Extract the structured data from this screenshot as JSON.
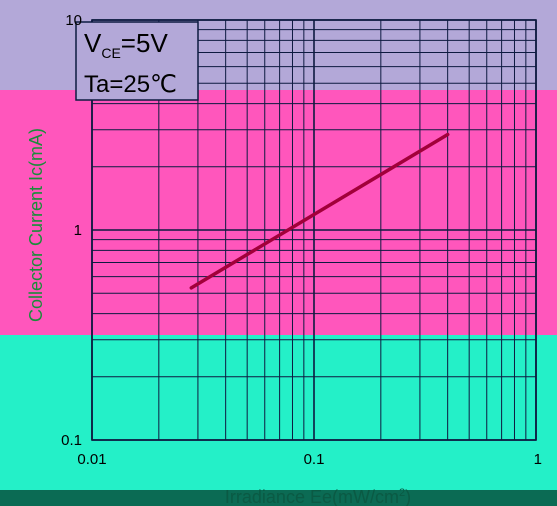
{
  "chart_data": {
    "type": "line",
    "xscale": "log",
    "yscale": "log",
    "xlabel": "Irradiance Ee(mW/cm",
    "xlabel_sup": "2",
    "xlabel_end": ")",
    "ylabel": "Collector Current Ic(mA)",
    "xlim": [
      0.01,
      1
    ],
    "ylim": [
      0.1,
      10
    ],
    "x_ticks": [
      "0.01",
      "0.1",
      "1"
    ],
    "y_ticks": [
      "0.1",
      "1",
      "10"
    ],
    "grid": true,
    "conditions": {
      "v_prefix": "V",
      "v_sub": "CE",
      "v_value": "=5V",
      "ta": "Ta=25℃"
    },
    "series": [
      {
        "x": [
          0.028,
          0.4
        ],
        "y": [
          0.53,
          2.85
        ]
      }
    ],
    "colors": {
      "band_top": "#b3a8d8",
      "band_mid": "#ff56bc",
      "band_low": "#24f0c8",
      "band_bottom": "#0b6b54",
      "grid": "#0d1a40",
      "line": "#a2003a",
      "axis_text": "#000000",
      "label_text": "#ff2a2a",
      "ylabel_text": "#1a8c3a"
    }
  }
}
